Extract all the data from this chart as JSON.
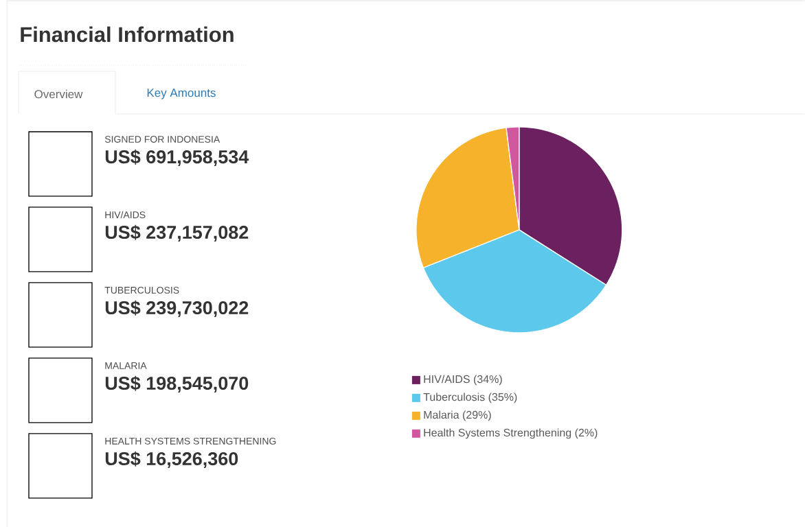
{
  "chart_data": [
    {
      "type": "other",
      "title": "Financial Information",
      "annotations": [
        "Overview",
        "Key Amounts",
        "SIGNED FOR INDONESIA",
        "US$ 691,958,534",
        "HIV/AIDS",
        "US$ 237,157,082",
        "TUBERCULOSIS",
        "US$ 239,730,022",
        "MALARIA",
        "US$ 198,545,070",
        "HEALTH SYSTEMS STRENGTHENING",
        "US$ 16,526,360"
      ]
    },
    {
      "type": "pie",
      "categories": [
        "HIV/AIDS (34%)",
        "Tuberculosis (35%)",
        "Malaria (29%)",
        "Health Systems Strengthening (2%)"
      ],
      "values": [
        34,
        35,
        29,
        2
      ],
      "colors": [
        "#6b2160",
        "#5bc8ec",
        "#f5b22a",
        "#d1579f"
      ],
      "legend": "bottom"
    }
  ]
}
